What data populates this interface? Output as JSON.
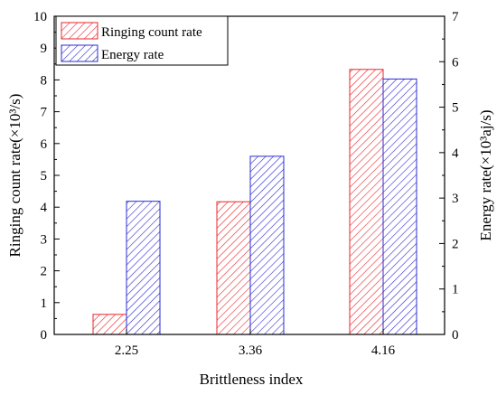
{
  "chart_data": {
    "type": "bar",
    "categories": [
      "2.25",
      "3.36",
      "4.16"
    ],
    "xlabel": "Brittleness index",
    "ylabel_left": "Ringing count rate(×10³/s)",
    "ylabel_right": "Energy rate(×10³aj/s)",
    "ylim_left": [
      0,
      10
    ],
    "ylim_right": [
      0,
      7
    ],
    "yticks_left": [
      "0",
      "1",
      "2",
      "3",
      "4",
      "5",
      "6",
      "7",
      "8",
      "9",
      "10"
    ],
    "yticks_right": [
      "0",
      "1",
      "2",
      "3",
      "4",
      "5",
      "6",
      "7"
    ],
    "grid": false,
    "legend_position": "top-left",
    "series": [
      {
        "name": "Ringing count rate",
        "axis": "left",
        "color": "#e8262b",
        "values": [
          0.63,
          4.17,
          8.33
        ]
      },
      {
        "name": "Energy rate",
        "axis": "right",
        "color": "#2b2bd6",
        "values": [
          2.93,
          3.92,
          5.62
        ]
      }
    ]
  }
}
